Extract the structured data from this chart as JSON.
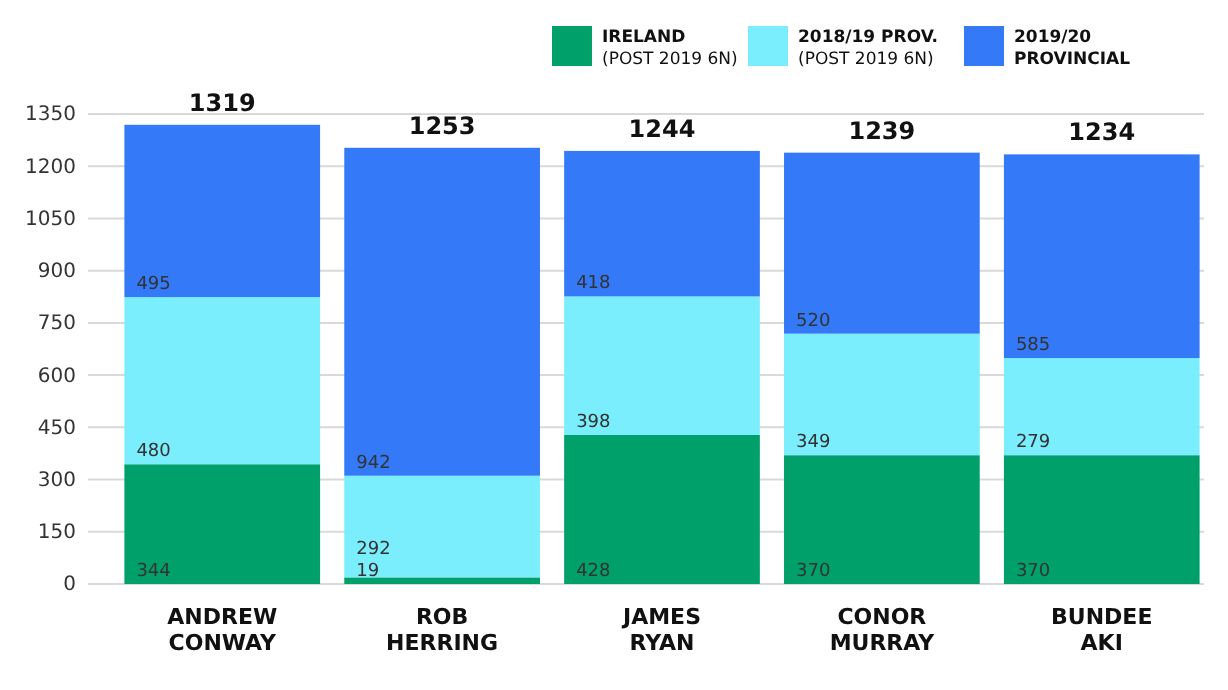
{
  "chart_data": {
    "type": "bar",
    "stacked": true,
    "categories": [
      "ANDREW CONWAY",
      "ROB HERRING",
      "JAMES RYAN",
      "CONOR MURRAY",
      "BUNDEE AKI"
    ],
    "series": [
      {
        "name": "IRELAND (POST 2019 6N)",
        "color": "#00a06b",
        "values": [
          344,
          19,
          428,
          370,
          370
        ]
      },
      {
        "name": "2018/19 PROV. (POST 2019 6N)",
        "color": "#7aeefc",
        "values": [
          480,
          292,
          398,
          349,
          279
        ]
      },
      {
        "name": "2019/20 PROVINCIAL",
        "color": "#3479f7",
        "values": [
          495,
          942,
          418,
          520,
          585
        ]
      }
    ],
    "ylim": [
      0,
      1350
    ],
    "yticks": [
      0,
      150,
      300,
      450,
      600,
      750,
      900,
      1050,
      1200,
      1350
    ],
    "grid": "y",
    "legend": "top right",
    "data_labels": true,
    "totals": [
      "1319",
      "1253",
      "1244",
      "1239",
      "1234"
    ]
  }
}
